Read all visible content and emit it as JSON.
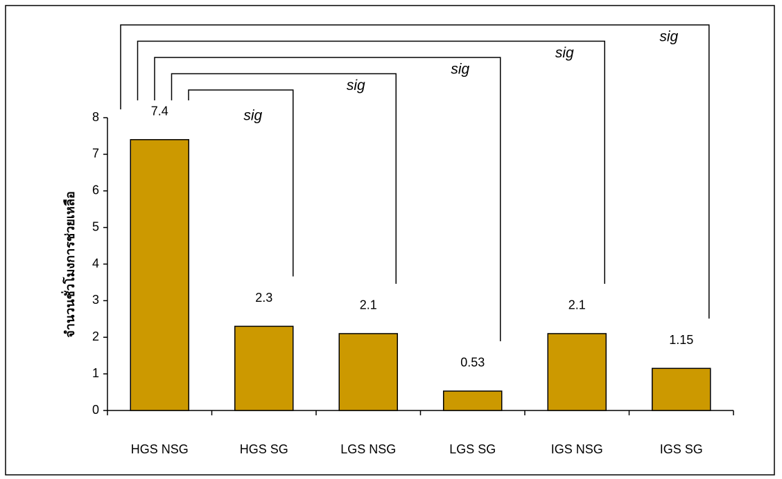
{
  "chart_data": {
    "type": "bar",
    "y_label": "จำนวนชั่วโมงการช่วยเหลือ",
    "categories": [
      "HGS NSG",
      "HGS SG",
      "LGS NSG",
      "LGS SG",
      "IGS NSG",
      "IGS SG"
    ],
    "values": [
      7.4,
      2.3,
      2.1,
      0.53,
      2.1,
      1.15
    ],
    "color": "#cc9900",
    "ylim": [
      0,
      8
    ],
    "yticks": [
      0,
      1,
      2,
      3,
      4,
      5,
      6,
      7,
      8
    ],
    "significance": [
      "sig",
      "sig",
      "sig",
      "sig",
      "sig"
    ]
  }
}
